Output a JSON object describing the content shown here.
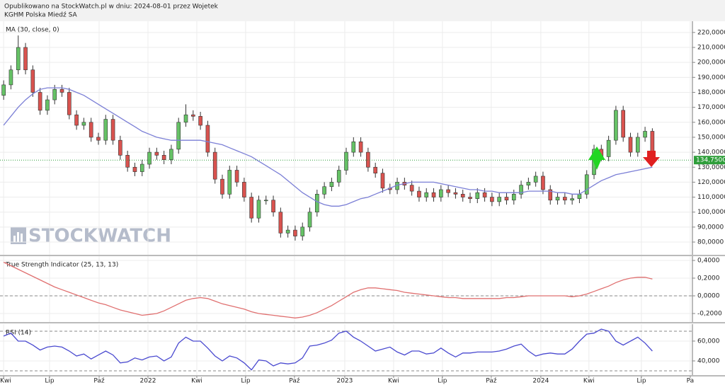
{
  "header": {
    "line1": "Opublikowano na StockWatch.pl w dniu: 2024-08-01 przez Wojetek",
    "line2": "KGHM Polska Miedź SA"
  },
  "chart_data": [
    {
      "type": "candlestick",
      "label": "MA (30, close, 0)",
      "watermark": "STOCKWATCH",
      "grid": true,
      "up_color": "#66c266",
      "down_color": "#d9534f",
      "ylim": [
        71.5,
        227.5
      ],
      "yticks": [
        {
          "value": 80,
          "label": "80,0000"
        },
        {
          "value": 90,
          "label": "90,0000"
        },
        {
          "value": 100,
          "label": "100,0000"
        },
        {
          "value": 110,
          "label": "110,0000"
        },
        {
          "value": 120,
          "label": "120,0000"
        },
        {
          "value": 130,
          "label": "130,0000"
        },
        {
          "value": 140,
          "label": "140,0000"
        },
        {
          "value": 150,
          "label": "150,0000"
        },
        {
          "value": 160,
          "label": "160,0000"
        },
        {
          "value": 170,
          "label": "170,0000"
        },
        {
          "value": 180,
          "label": "180,0000"
        },
        {
          "value": 190,
          "label": "190,0000"
        },
        {
          "value": 200,
          "label": "200,0000"
        },
        {
          "value": 210,
          "label": "210,0000"
        },
        {
          "value": 220,
          "label": "220,0000"
        }
      ],
      "open": [
        178,
        185,
        195,
        210,
        195,
        180,
        168,
        175,
        182,
        180,
        165,
        158,
        160,
        150,
        148,
        162,
        148,
        138,
        130,
        127,
        132,
        140,
        138,
        135,
        142,
        160,
        165,
        164,
        158,
        140,
        122,
        112,
        128,
        120,
        110,
        96,
        108,
        108,
        100,
        86,
        88,
        84,
        90,
        100,
        112,
        117,
        120,
        128,
        140,
        147,
        140,
        130,
        126,
        116,
        115,
        120,
        118,
        114,
        110,
        113,
        110,
        115,
        113,
        112,
        110,
        109,
        113,
        110,
        107,
        110,
        108,
        112,
        118,
        120,
        124,
        115,
        108,
        110,
        108,
        109,
        112,
        125,
        142,
        137,
        148,
        168,
        150,
        140,
        150,
        154
      ],
      "high": [
        188,
        198,
        218,
        213,
        198,
        183,
        178,
        185,
        185,
        183,
        168,
        163,
        163,
        153,
        165,
        165,
        151,
        141,
        133,
        135,
        143,
        143,
        141,
        145,
        163,
        172,
        168,
        167,
        161,
        143,
        125,
        131,
        131,
        123,
        113,
        111,
        111,
        111,
        103,
        91,
        91,
        93,
        103,
        115,
        120,
        123,
        131,
        143,
        150,
        150,
        143,
        133,
        129,
        119,
        123,
        123,
        121,
        117,
        116,
        116,
        118,
        118,
        116,
        115,
        113,
        116,
        116,
        113,
        113,
        113,
        115,
        121,
        123,
        127,
        127,
        118,
        113,
        113,
        112,
        115,
        128,
        145,
        145,
        151,
        171,
        171,
        153,
        153,
        157,
        156
      ],
      "low": [
        175,
        182,
        192,
        192,
        177,
        165,
        165,
        172,
        177,
        162,
        155,
        155,
        147,
        145,
        145,
        145,
        135,
        127,
        124,
        124,
        129,
        135,
        132,
        132,
        139,
        157,
        161,
        155,
        137,
        119,
        109,
        109,
        117,
        107,
        93,
        93,
        105,
        97,
        83,
        83,
        81,
        81,
        87,
        97,
        109,
        114,
        117,
        125,
        137,
        137,
        127,
        123,
        113,
        112,
        112,
        115,
        111,
        107,
        107,
        107,
        107,
        110,
        109,
        107,
        106,
        106,
        107,
        104,
        104,
        105,
        105,
        109,
        115,
        117,
        112,
        105,
        105,
        105,
        105,
        106,
        109,
        122,
        134,
        134,
        145,
        147,
        137,
        137,
        147,
        131
      ],
      "close": [
        185,
        195,
        210,
        195,
        180,
        168,
        175,
        182,
        180,
        165,
        158,
        160,
        150,
        148,
        162,
        148,
        138,
        130,
        127,
        132,
        140,
        138,
        135,
        142,
        160,
        165,
        164,
        158,
        140,
        122,
        112,
        128,
        120,
        110,
        96,
        108,
        108,
        100,
        86,
        88,
        84,
        90,
        100,
        112,
        117,
        120,
        128,
        140,
        147,
        140,
        130,
        126,
        116,
        115,
        120,
        118,
        114,
        110,
        113,
        110,
        115,
        113,
        112,
        110,
        109,
        113,
        110,
        107,
        110,
        108,
        112,
        118,
        120,
        124,
        115,
        108,
        110,
        108,
        109,
        112,
        125,
        142,
        137,
        148,
        168,
        150,
        140,
        150,
        154,
        134.75
      ],
      "ma": {
        "color": "#7b7fd6",
        "values": [
          158,
          164,
          170,
          175,
          179,
          182,
          183,
          183,
          183,
          182,
          180,
          178,
          175,
          172,
          169,
          166,
          163,
          160,
          157,
          154,
          152,
          150,
          149,
          148,
          148,
          148,
          148,
          148,
          147,
          146,
          145,
          143,
          141,
          139,
          137,
          134,
          131,
          128,
          125,
          121,
          117,
          113,
          110,
          107,
          105,
          104,
          104,
          105,
          107,
          109,
          110,
          112,
          114,
          116,
          118,
          119,
          120,
          120,
          120,
          120,
          119,
          118,
          117,
          116,
          115,
          115,
          114,
          114,
          113,
          113,
          113,
          113,
          114,
          114,
          114,
          114,
          113,
          113,
          112,
          112,
          115,
          118,
          121,
          123,
          125,
          126,
          127,
          128,
          129,
          130
        ]
      },
      "last_price": {
        "value": 134.75,
        "label": "134,7500",
        "color": "#2e9e3a"
      }
    },
    {
      "type": "line",
      "label": "True Strength Indicator (25, 13, 13)",
      "grid": true,
      "color": "#e07070",
      "ylim": [
        -0.296,
        0.448
      ],
      "yticks": [
        {
          "value": 0.4,
          "label": "0,4000"
        },
        {
          "value": 0.2,
          "label": "0,2000"
        },
        {
          "value": 0,
          "label": "0,0000"
        },
        {
          "value": -0.2,
          "label": "-0,2000"
        }
      ],
      "ref_lines": [
        0
      ],
      "values": [
        0.38,
        0.34,
        0.3,
        0.26,
        0.22,
        0.18,
        0.14,
        0.1,
        0.07,
        0.04,
        0.01,
        -0.02,
        -0.05,
        -0.08,
        -0.1,
        -0.13,
        -0.16,
        -0.18,
        -0.2,
        -0.22,
        -0.21,
        -0.2,
        -0.17,
        -0.13,
        -0.09,
        -0.05,
        -0.03,
        -0.02,
        -0.03,
        -0.06,
        -0.09,
        -0.11,
        -0.13,
        -0.15,
        -0.18,
        -0.2,
        -0.21,
        -0.22,
        -0.23,
        -0.24,
        -0.25,
        -0.24,
        -0.22,
        -0.19,
        -0.15,
        -0.11,
        -0.06,
        -0.01,
        0.04,
        0.07,
        0.09,
        0.09,
        0.08,
        0.07,
        0.06,
        0.04,
        0.03,
        0.02,
        0.01,
        0,
        -0.01,
        -0.02,
        -0.02,
        -0.03,
        -0.03,
        -0.03,
        -0.03,
        -0.03,
        -0.03,
        -0.02,
        -0.02,
        -0.01,
        0,
        0,
        0,
        0,
        0,
        0,
        -0.01,
        0,
        0.02,
        0.05,
        0.08,
        0.11,
        0.15,
        0.18,
        0.2,
        0.21,
        0.21,
        0.19
      ]
    },
    {
      "type": "line",
      "label": "RSI (14)",
      "grid": true,
      "color": "#4a4ad0",
      "ylim": [
        25.7,
        77.1
      ],
      "yticks": [
        {
          "value": 60,
          "label": "60,000"
        },
        {
          "value": 40,
          "label": "40,000"
        }
      ],
      "ref_lines": [
        70,
        30
      ],
      "values": [
        65,
        68,
        60,
        60,
        56,
        51,
        54,
        55,
        54,
        50,
        45,
        47,
        42,
        46,
        50,
        46,
        38,
        39,
        43,
        41,
        44,
        45,
        40,
        44,
        58,
        64,
        60,
        60,
        53,
        45,
        40,
        45,
        43,
        38,
        31,
        41,
        40,
        35,
        38,
        37,
        38,
        43,
        55,
        56,
        58,
        61,
        68,
        70,
        64,
        60,
        55,
        50,
        52,
        54,
        49,
        46,
        50,
        50,
        47,
        48,
        53,
        48,
        44,
        48,
        48,
        49,
        49,
        49,
        50,
        52,
        55,
        57,
        50,
        45,
        47,
        48,
        47,
        47,
        52,
        60,
        67,
        68,
        72,
        70,
        60,
        56,
        60,
        64,
        58,
        50
      ],
      "xlim": [
        -0.5,
        94.5
      ],
      "xticks": [
        {
          "value": 0,
          "label": "Kwi"
        },
        {
          "value": 6.3,
          "label": "Lip"
        },
        {
          "value": 13.1,
          "label": "Paź"
        },
        {
          "value": 19.8,
          "label": "2022"
        },
        {
          "value": 26.5,
          "label": "Kwi"
        },
        {
          "value": 33.2,
          "label": "Lip"
        },
        {
          "value": 39.9,
          "label": "Paź"
        },
        {
          "value": 46.8,
          "label": "2023"
        },
        {
          "value": 53.5,
          "label": "Kwi"
        },
        {
          "value": 60.2,
          "label": "Lip"
        },
        {
          "value": 66.9,
          "label": "Paź"
        },
        {
          "value": 73.7,
          "label": "2024"
        },
        {
          "value": 80.3,
          "label": "Kwi"
        },
        {
          "value": 87.5,
          "label": "Lip"
        },
        {
          "value": 94.2,
          "label": "Pa"
        }
      ]
    }
  ]
}
